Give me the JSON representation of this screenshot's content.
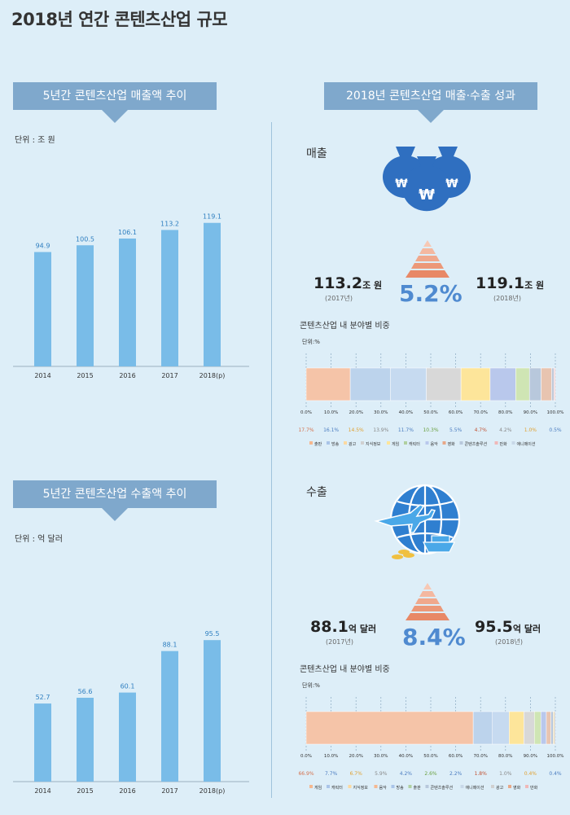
{
  "page": {
    "title": "2018년 연간 콘텐츠산업 규모"
  },
  "left": {
    "sales": {
      "banner": "5년간 콘텐츠산업 매출액 추이",
      "unit": "단위 : 조 원",
      "chart_data": {
        "type": "bar",
        "categories": [
          "2014",
          "2015",
          "2016",
          "2017",
          "2018(p)"
        ],
        "values": [
          94.9,
          100.5,
          106.1,
          113.2,
          119.1
        ],
        "labels": [
          "94.9",
          "100.5",
          "106.1",
          "113.2",
          "119.1"
        ],
        "ylim": [
          0,
          125
        ],
        "bar_color": "#79bce8",
        "label_color": "#2f7fc0"
      }
    },
    "exports": {
      "banner": "5년간 콘텐츠산업 수출액 추이",
      "unit": "단위 : 억 달러",
      "chart_data": {
        "type": "bar",
        "categories": [
          "2014",
          "2015",
          "2016",
          "2017",
          "2018(p)"
        ],
        "values": [
          52.7,
          56.6,
          60.1,
          88.1,
          95.5
        ],
        "labels": [
          "52.7",
          "56.6",
          "60.1",
          "88.1",
          "95.5"
        ],
        "ylim": [
          0,
          100
        ],
        "bar_color": "#79bce8",
        "label_color": "#2f7fc0"
      }
    }
  },
  "right": {
    "banner": "2018년 콘텐츠산업 매출·수출 성과",
    "sales": {
      "label": "매출",
      "prev_value": "113.2",
      "prev_unit": "조 원",
      "prev_year": "(2017년)",
      "cur_value": "119.1",
      "cur_unit": "조 원",
      "cur_year": "(2018년)",
      "growth": "5.2%",
      "breakdown_title": "콘텐츠산업 내 분야별 비중",
      "breakdown_unit": "단위:%",
      "chart_data": {
        "type": "bar",
        "orientation": "horizontal-stacked",
        "xlim": [
          0,
          100
        ],
        "ticks": [
          "0.0%",
          "10.0%",
          "20.0%",
          "30.0%",
          "40.0%",
          "50.0%",
          "60.0%",
          "70.0%",
          "80.0%",
          "90.0%",
          "100.0%"
        ],
        "values": [
          17.7,
          16.1,
          14.5,
          13.9,
          11.7,
          10.3,
          5.5,
          4.7,
          4.2,
          1.0,
          0.5
        ],
        "value_labels": [
          "17.7%",
          "16.1%",
          "14.5%",
          "13.9%",
          "11.7%",
          "10.3%",
          "5.5%",
          "4.7%",
          "4.2%",
          "1.0%",
          "0.5%"
        ],
        "colors": [
          "#f5c4a8",
          "#bcd3ec",
          "#c6daf0",
          "#d8d8d8",
          "#fde59a",
          "#b9c8ec",
          "#cfe5b4",
          "#b8c8dc",
          "#e8c4b0",
          "#c0c8d8",
          "#f0c8c8"
        ],
        "label_colors": [
          "#d4704c",
          "#4a7cc0",
          "#e0a030",
          "#888888",
          "#4a7cc0",
          "#6aa040",
          "#4a7cc0",
          "#c05030",
          "#888888",
          "#e0a030",
          "#4a7cc0"
        ],
        "legend": [
          "출판",
          "방송",
          "광고",
          "지식정보",
          "게임",
          "캐릭터",
          "음악",
          "영화",
          "콘텐츠솔루션",
          "만화",
          "애니메이션"
        ],
        "legend_colors": [
          "#f5b890",
          "#a9c4e8",
          "#fcd9a0",
          "#d0d0d0",
          "#fde59a",
          "#b0d0a0",
          "#b9c8ec",
          "#e8a888",
          "#b8c8dc",
          "#f0b8b8",
          "#c8d8e8"
        ]
      }
    },
    "exports": {
      "label": "수출",
      "prev_value": "88.1",
      "prev_unit": "억 달러",
      "prev_year": "(2017년)",
      "cur_value": "95.5",
      "cur_unit": "억 달러",
      "cur_year": "(2018년)",
      "growth": "8.4%",
      "breakdown_title": "콘텐츠산업 내 분야별 비중",
      "breakdown_unit": "단위:%",
      "chart_data": {
        "type": "bar",
        "orientation": "horizontal-stacked",
        "xlim": [
          0,
          100
        ],
        "ticks": [
          "0.0%",
          "10.0%",
          "20.0%",
          "30.0%",
          "40.0%",
          "50.0%",
          "60.0%",
          "70.0%",
          "80.0%",
          "90.0%",
          "100.0%"
        ],
        "values": [
          66.9,
          7.7,
          6.7,
          5.9,
          4.2,
          2.6,
          2.2,
          1.8,
          1.0,
          0.4,
          0.4
        ],
        "value_labels": [
          "66.9%",
          "7.7%",
          "6.7%",
          "5.9%",
          "4.2%",
          "2.6%",
          "2.2%",
          "1.8%",
          "1.0%",
          "0.4%",
          "0.4%"
        ],
        "colors": [
          "#f5c4a8",
          "#bcd3ec",
          "#c6daf0",
          "#fde59a",
          "#d8d8d8",
          "#cfe5b4",
          "#b9c8ec",
          "#e8c4b0",
          "#b8c8dc",
          "#f0d080",
          "#c0c8d8"
        ],
        "label_colors": [
          "#d4704c",
          "#4a7cc0",
          "#e0a030",
          "#888888",
          "#4a7cc0",
          "#6aa040",
          "#4a7cc0",
          "#c05030",
          "#888888",
          "#e0a030",
          "#4a7cc0"
        ],
        "legend": [
          "게임",
          "캐릭터",
          "지식정보",
          "음악",
          "방송",
          "출판",
          "콘텐츠솔루션",
          "애니메이션",
          "광고",
          "영화",
          "만화"
        ],
        "legend_colors": [
          "#f5b890",
          "#a9c4e8",
          "#fcd9a0",
          "#f5b890",
          "#a9c4e8",
          "#b0d0a0",
          "#b8c8dc",
          "#c8d8e8",
          "#d0d0d0",
          "#e8a888",
          "#f0b8b8"
        ]
      }
    }
  }
}
